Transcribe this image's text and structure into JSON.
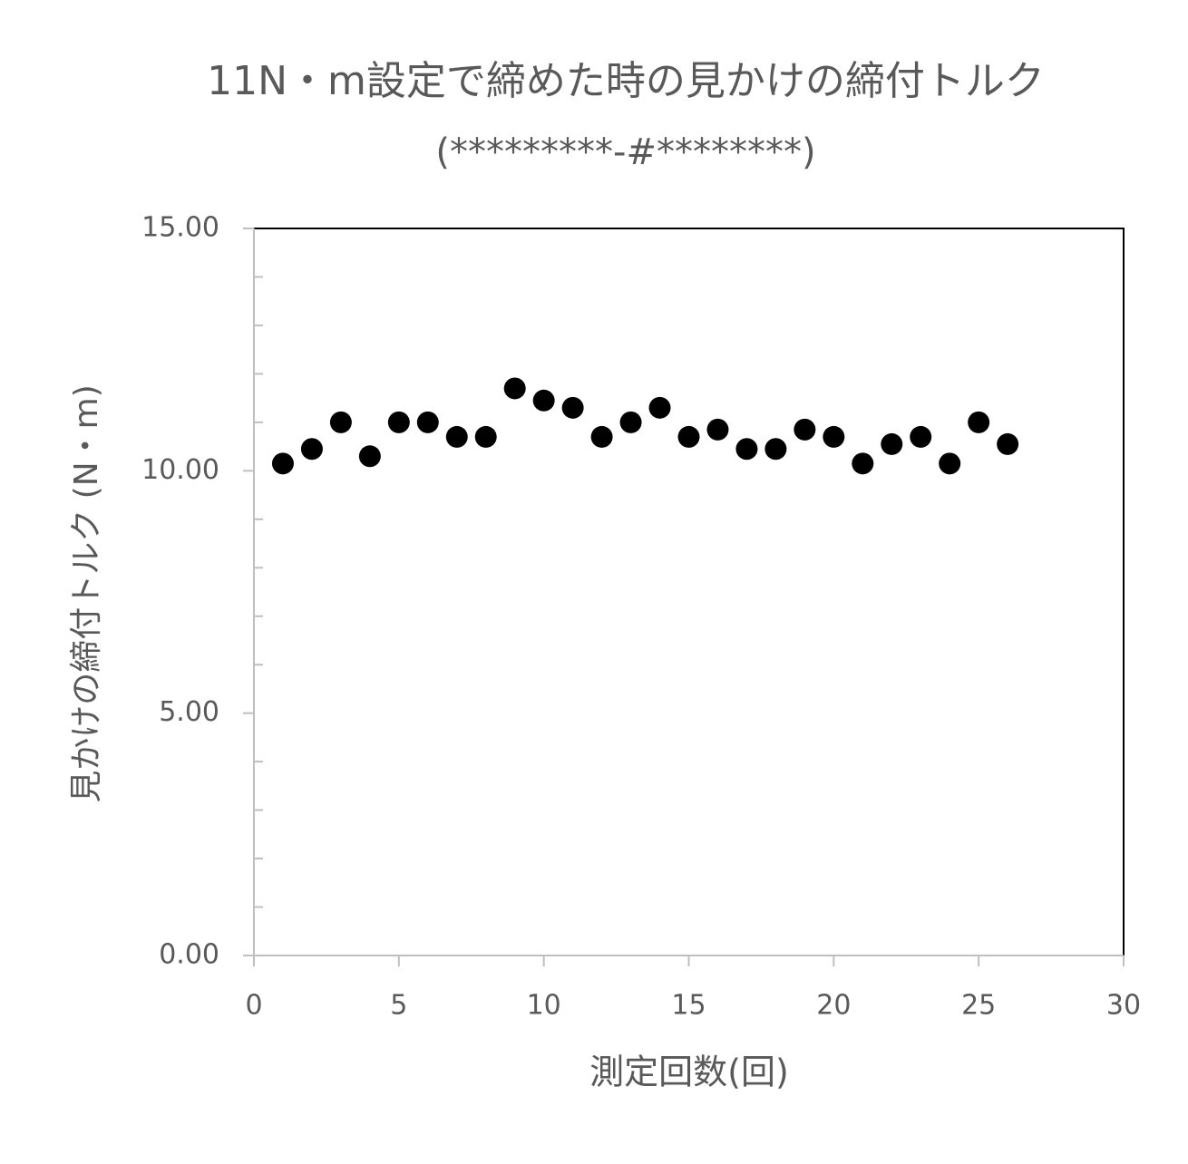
{
  "chart_data": {
    "type": "scatter",
    "title": "11N・m設定で締めた時の見かけの締付トルク",
    "subtitle": "(*********-#********)",
    "x_label": "測定回数(回)",
    "y_label": "見かけの締付トルク (N・m)",
    "x": [
      1,
      2,
      3,
      4,
      5,
      6,
      7,
      8,
      9,
      10,
      11,
      12,
      13,
      14,
      15,
      16,
      17,
      18,
      19,
      20,
      21,
      22,
      23,
      24,
      25,
      26
    ],
    "series": [
      {
        "color": "#000000",
        "values": [
          10.15,
          10.45,
          11.0,
          10.3,
          11.0,
          11.0,
          10.7,
          10.7,
          11.7,
          11.45,
          11.3,
          10.7,
          11.0,
          11.3,
          10.7,
          10.85,
          10.45,
          10.45,
          10.85,
          10.7,
          10.15,
          10.55,
          10.7,
          10.15,
          11.0,
          10.55
        ]
      }
    ],
    "xlim": [
      0,
      30
    ],
    "xticks": [
      0,
      5,
      10,
      15,
      20,
      25,
      30
    ],
    "ylim": [
      0,
      15
    ],
    "yticks": [
      {
        "value": 0,
        "label": "0.00"
      },
      {
        "value": 5,
        "label": "5.00"
      },
      {
        "value": 10,
        "label": "10.00"
      },
      {
        "value": 15,
        "label": "15.00"
      }
    ]
  }
}
